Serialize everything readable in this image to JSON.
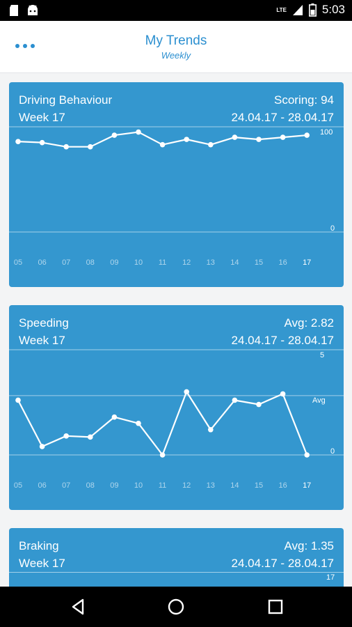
{
  "status_bar": {
    "time": "5:03",
    "network": "LTE"
  },
  "header": {
    "title": "My Trends",
    "subtitle": "Weekly"
  },
  "cards": {
    "driving": {
      "title": "Driving Behaviour",
      "metric": "Scoring: 94",
      "week": "Week 17",
      "range": "24.04.17 - 28.04.17"
    },
    "speeding": {
      "title": "Speeding",
      "metric": "Avg: 2.82",
      "week": "Week 17",
      "range": "24.04.17 - 28.04.17"
    },
    "braking": {
      "title": "Braking",
      "metric": "Avg: 1.35",
      "week": "Week 17",
      "range": "24.04.17 - 28.04.17"
    }
  },
  "chart_data": [
    {
      "type": "line",
      "title": "Driving Behaviour",
      "categories": [
        "05",
        "06",
        "07",
        "08",
        "09",
        "10",
        "11",
        "12",
        "13",
        "14",
        "15",
        "16",
        "17"
      ],
      "values": [
        86,
        85,
        81,
        81,
        92,
        95,
        83,
        88,
        83,
        90,
        88,
        90,
        92
      ],
      "ylim": [
        0,
        100
      ],
      "ytick_labels": [
        "100",
        "0"
      ],
      "highlight_category": "17"
    },
    {
      "type": "line",
      "title": "Speeding",
      "categories": [
        "05",
        "06",
        "07",
        "08",
        "09",
        "10",
        "11",
        "12",
        "13",
        "14",
        "15",
        "16",
        "17"
      ],
      "values": [
        2.6,
        0.4,
        0.9,
        0.85,
        1.8,
        1.5,
        0.0,
        3.0,
        1.2,
        2.6,
        2.4,
        2.9,
        0.0
      ],
      "ylim": [
        0,
        5
      ],
      "average": 2.82,
      "ytick_labels": [
        "5",
        "Avg",
        "0"
      ],
      "highlight_category": "17"
    }
  ],
  "braking_axis": {
    "top_label": "17"
  },
  "nav": {
    "back": "back-icon",
    "home": "home-icon",
    "recents": "recents-icon"
  }
}
